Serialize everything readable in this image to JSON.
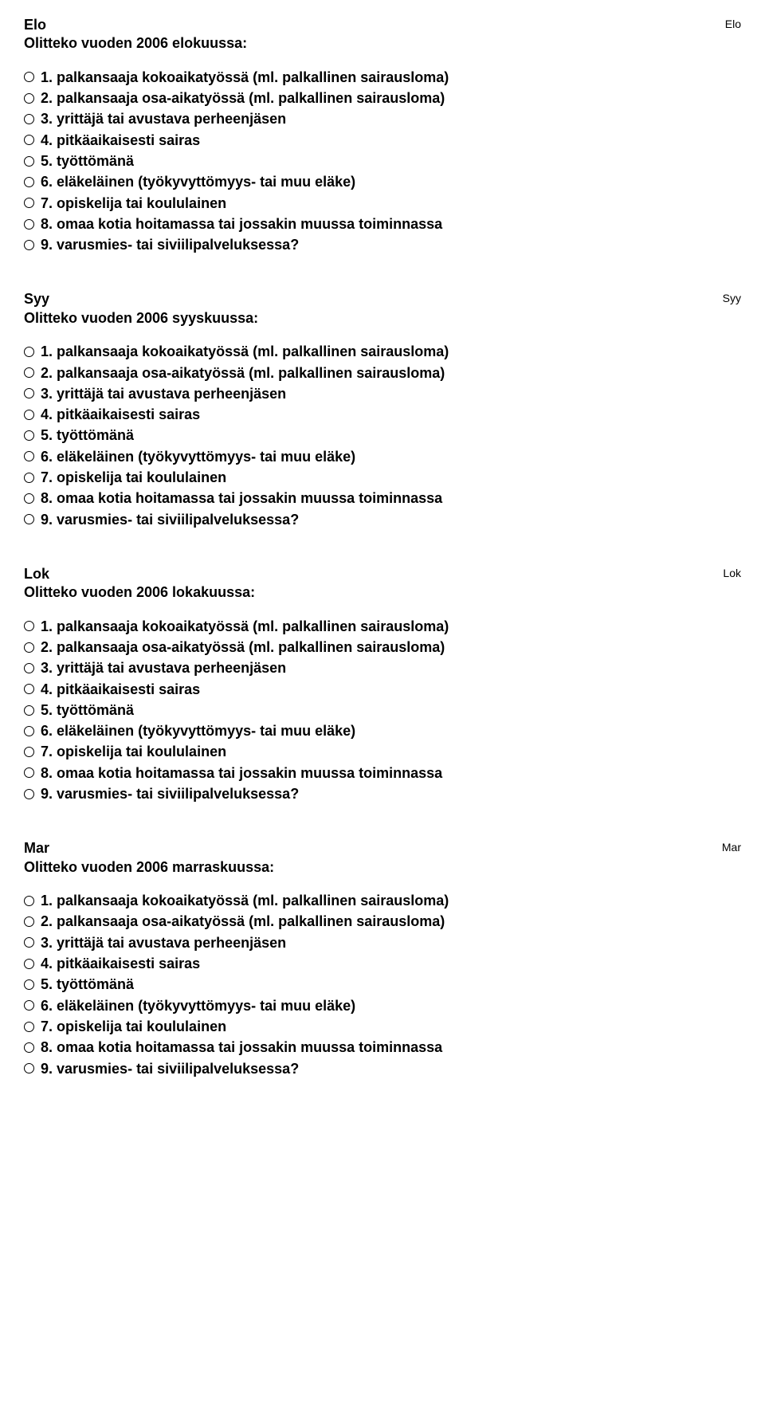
{
  "options": [
    "1. palkansaaja kokoaikatyössä (ml. palkallinen sairausloma)",
    "2. palkansaaja osa-aikatyössä (ml. palkallinen sairausloma)",
    "3. yrittäjä tai avustava perheenjäsen",
    "4. pitkäaikaisesti sairas",
    "5. työttömänä",
    "6. eläkeläinen (työkyvyttömyys- tai muu eläke)",
    "7. opiskelija tai koululainen",
    "8. omaa kotia hoitamassa tai jossakin muussa toiminnassa",
    "9. varusmies- tai siviilipalveluksessa?"
  ],
  "sections": [
    {
      "code": "Elo",
      "title": "Elo",
      "question": "Olitteko vuoden 2006 elokuussa:"
    },
    {
      "code": "Syy",
      "title": "Syy",
      "question": "Olitteko vuoden 2006 syyskuussa:"
    },
    {
      "code": "Lok",
      "title": "Lok",
      "question": "Olitteko vuoden 2006 lokakuussa:"
    },
    {
      "code": "Mar",
      "title": "Mar",
      "question": "Olitteko vuoden 2006 marraskuussa:"
    }
  ]
}
